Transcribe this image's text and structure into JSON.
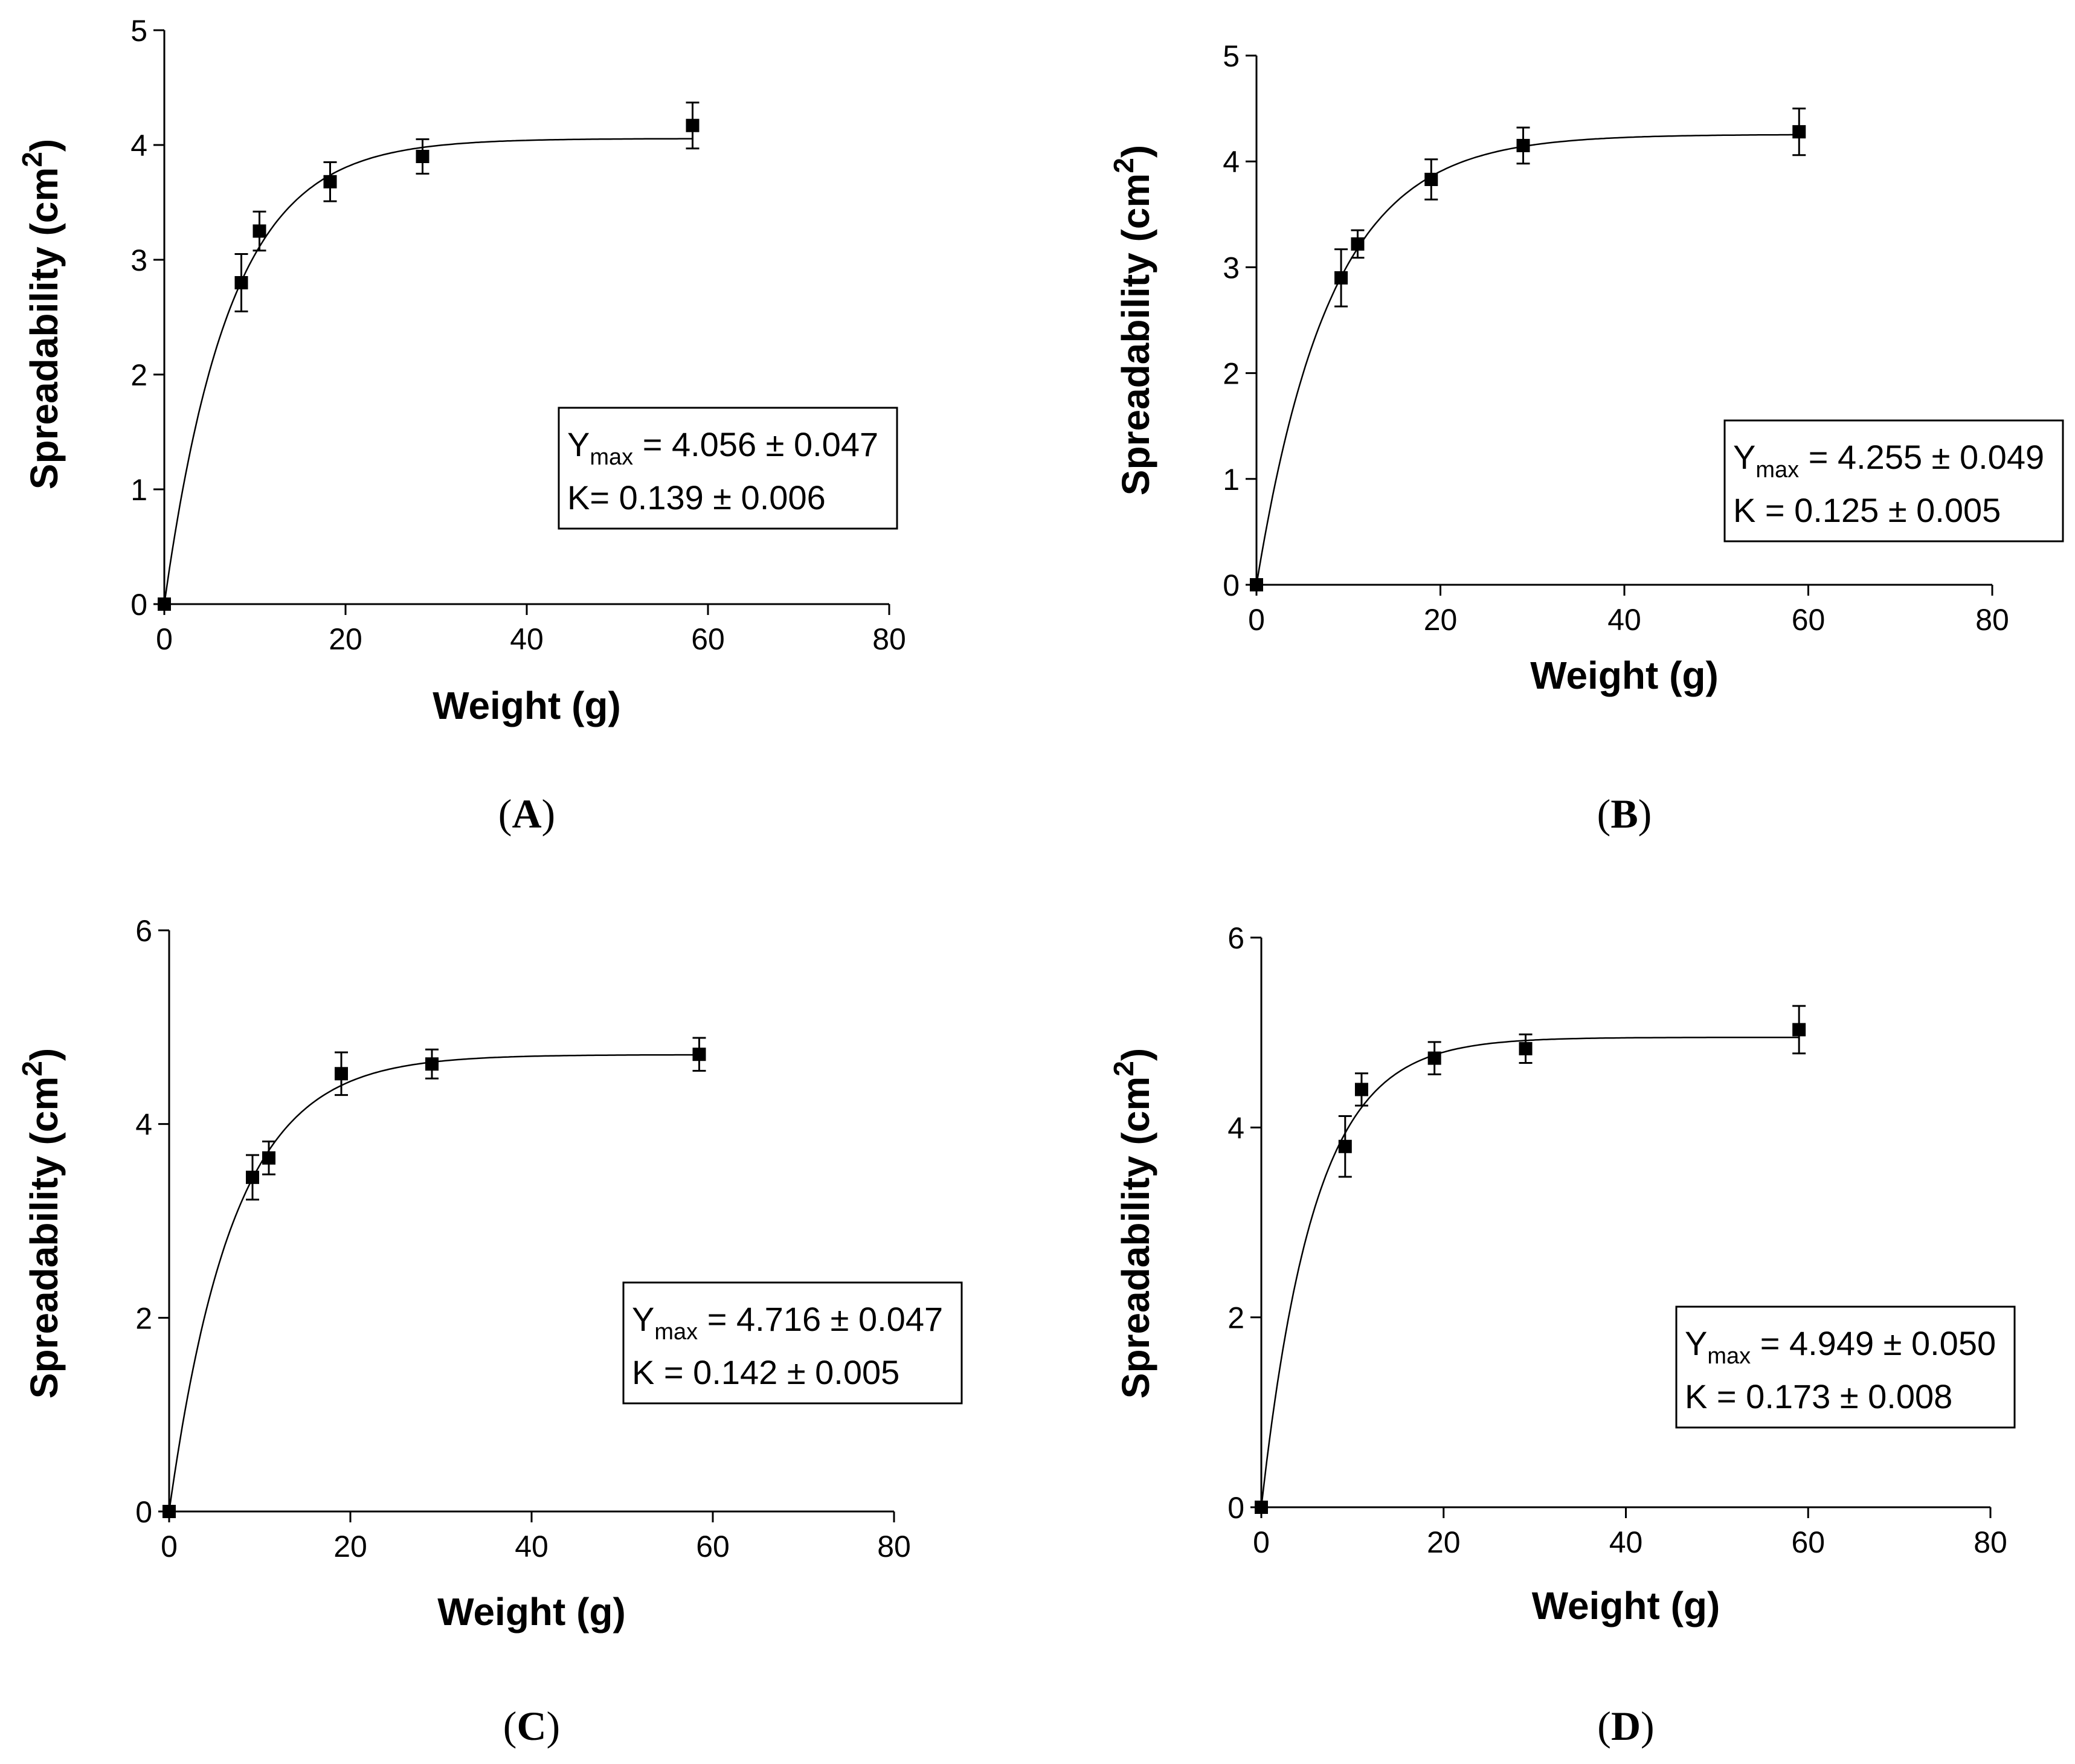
{
  "chart_data": [
    {
      "type": "scatter",
      "panel": "A",
      "xlabel": "Weight (g)",
      "ylabel_main": "Spreadability (cm",
      "ylabel_sup": "2",
      "ylabel_close": ")",
      "xlim": [
        0,
        80
      ],
      "ylim": [
        0,
        5
      ],
      "xticks": [
        0,
        20,
        40,
        60,
        80
      ],
      "yticks": [
        0,
        1,
        2,
        3,
        4,
        5
      ],
      "x": [
        0,
        8.5,
        10.5,
        18.3,
        28.5,
        58.3
      ],
      "y": [
        0,
        2.8,
        3.25,
        3.68,
        3.9,
        4.17
      ],
      "err": [
        0,
        0.25,
        0.17,
        0.17,
        0.15,
        0.2
      ],
      "fit": {
        "model": "Y = Ymax*(1-exp(-K*x))",
        "ymax": 4.056,
        "k": 0.139
      },
      "box": {
        "ymax_symbol": "Y",
        "ymax_sub": "max",
        "ymax_text": " = 4.056 ± 0.047",
        "k_text": "K= 0.139 ± 0.006"
      }
    },
    {
      "type": "scatter",
      "panel": "B",
      "xlabel": "Weight (g)",
      "ylabel_main": "Spreadability (cm",
      "ylabel_sup": "2",
      "ylabel_close": ")",
      "xlim": [
        0,
        80
      ],
      "ylim": [
        0,
        5
      ],
      "xticks": [
        0,
        20,
        40,
        60,
        80
      ],
      "yticks": [
        0,
        1,
        2,
        3,
        4,
        5
      ],
      "x": [
        0,
        9.2,
        11,
        19,
        29,
        59
      ],
      "y": [
        0,
        2.9,
        3.22,
        3.83,
        4.15,
        4.28
      ],
      "err": [
        0,
        0.27,
        0.13,
        0.19,
        0.17,
        0.22
      ],
      "fit": {
        "model": "Y = Ymax*(1-exp(-K*x))",
        "ymax": 4.255,
        "k": 0.125
      },
      "box": {
        "ymax_symbol": "Y",
        "ymax_sub": "max",
        "ymax_text": " = 4.255 ± 0.049",
        "k_text": "K = 0.125 ± 0.005"
      }
    },
    {
      "type": "scatter",
      "panel": "C",
      "xlabel": "Weight (g)",
      "ylabel_main": "Spreadability (cm",
      "ylabel_sup": "2",
      "ylabel_close": ")",
      "xlim": [
        0,
        80
      ],
      "ylim": [
        0,
        6
      ],
      "xticks": [
        0,
        20,
        40,
        60,
        80
      ],
      "yticks": [
        0,
        2,
        4,
        6
      ],
      "x": [
        0,
        9.2,
        11,
        19,
        29,
        58.5
      ],
      "y": [
        0,
        3.45,
        3.65,
        4.52,
        4.62,
        4.72
      ],
      "err": [
        0,
        0.23,
        0.17,
        0.22,
        0.15,
        0.17
      ],
      "fit": {
        "model": "Y = Ymax*(1-exp(-K*x))",
        "ymax": 4.716,
        "k": 0.142
      },
      "box": {
        "ymax_symbol": "Y",
        "ymax_sub": "max",
        "ymax_text": " = 4.716 ± 0.047",
        "k_text": "K = 0.142 ± 0.005"
      }
    },
    {
      "type": "scatter",
      "panel": "D",
      "xlabel": "Weight (g)",
      "ylabel_main": "Spreadability (cm",
      "ylabel_sup": "2",
      "ylabel_close": ")",
      "xlim": [
        0,
        80
      ],
      "ylim": [
        0,
        6
      ],
      "xticks": [
        0,
        20,
        40,
        60,
        80
      ],
      "yticks": [
        0,
        2,
        4,
        6
      ],
      "x": [
        0,
        9.2,
        11,
        19,
        29,
        59
      ],
      "y": [
        0,
        3.8,
        4.4,
        4.73,
        4.83,
        5.03
      ],
      "err": [
        0,
        0.32,
        0.17,
        0.17,
        0.15,
        0.25
      ],
      "fit": {
        "model": "Y = Ymax*(1-exp(-K*x))",
        "ymax": 4.949,
        "k": 0.173
      },
      "box": {
        "ymax_symbol": "Y",
        "ymax_sub": "max",
        "ymax_text": " = 4.949 ± 0.050",
        "k_text": "K = 0.173 ± 0.008"
      }
    }
  ],
  "panel_labels": [
    {
      "open": "(",
      "letter": "A",
      "close": ")"
    },
    {
      "open": "(",
      "letter": "B",
      "close": ")"
    },
    {
      "open": "(",
      "letter": "C",
      "close": ")"
    },
    {
      "open": "(",
      "letter": "D",
      "close": ")"
    }
  ],
  "colors": {
    "ink": "#000000",
    "background": "#ffffff"
  }
}
